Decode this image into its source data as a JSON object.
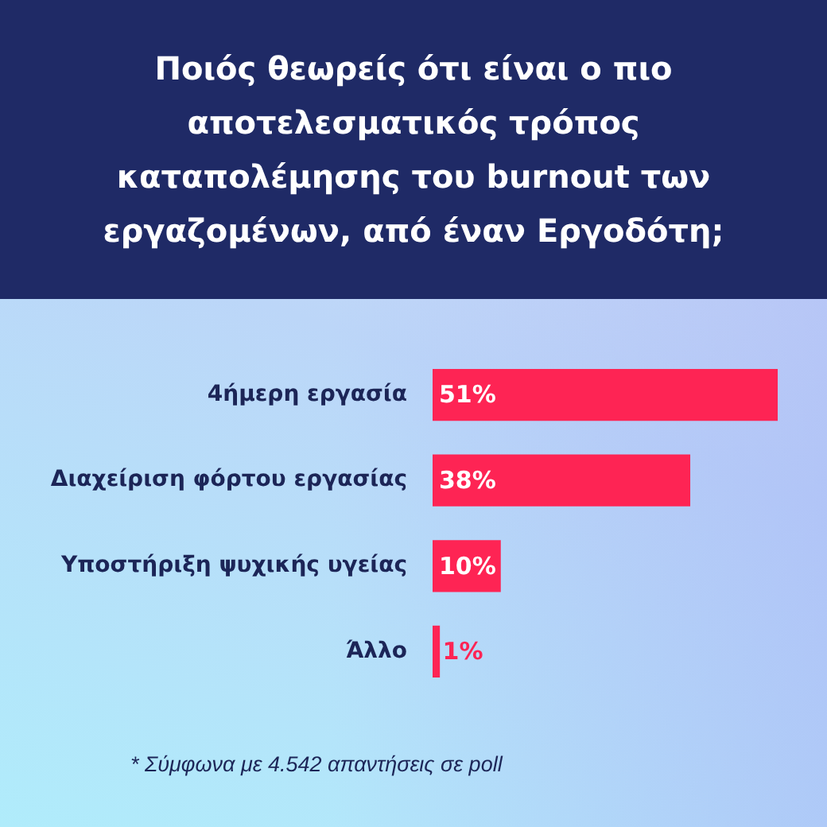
{
  "chart_data": {
    "type": "bar",
    "orientation": "horizontal",
    "title": "Ποιός θεωρείς ότι είναι ο πιο αποτελεσματικός τρόπος καταπολέμησης του burnout των εργαζομένων, από έναν Εργοδότη;",
    "categories": [
      "4ήμερη εργασία",
      "Διαχείριση φόρτου εργασίας",
      "Υποστήριξη ψυχικής υγείας",
      "Άλλο"
    ],
    "values": [
      51,
      38,
      10,
      1
    ],
    "value_labels": [
      "51%",
      "38%",
      "10%",
      "1%"
    ],
    "color": "#fe2454",
    "tick_labels": "y",
    "annotations": [
      "* Σύμφωνα με 4.542 απαντήσεις σε poll"
    ]
  }
}
